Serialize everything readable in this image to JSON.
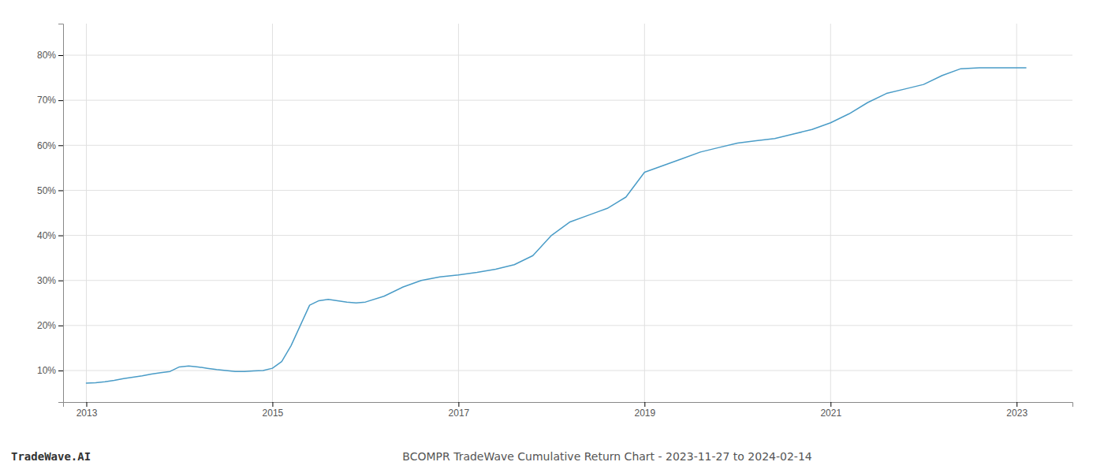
{
  "chart_data": {
    "type": "line",
    "title": "BCOMPR TradeWave Cumulative Return Chart - 2023-11-27 to 2024-02-14",
    "annotations": [
      {
        "text": "TradeWave.AI"
      }
    ],
    "color": "#4a9cc7",
    "grid": true,
    "x": [
      2013.0,
      2013.1,
      2013.2,
      2013.3,
      2013.4,
      2013.5,
      2013.6,
      2013.7,
      2013.8,
      2013.9,
      2014.0,
      2014.1,
      2014.2,
      2014.3,
      2014.4,
      2014.5,
      2014.6,
      2014.7,
      2014.8,
      2014.9,
      2015.0,
      2015.1,
      2015.2,
      2015.3,
      2015.4,
      2015.5,
      2015.6,
      2015.7,
      2015.8,
      2015.9,
      2016.0,
      2016.2,
      2016.4,
      2016.6,
      2016.8,
      2017.0,
      2017.2,
      2017.4,
      2017.6,
      2017.8,
      2018.0,
      2018.2,
      2018.4,
      2018.6,
      2018.8,
      2019.0,
      2019.2,
      2019.4,
      2019.6,
      2019.8,
      2020.0,
      2020.2,
      2020.4,
      2020.6,
      2020.8,
      2021.0,
      2021.2,
      2021.4,
      2021.6,
      2021.8,
      2022.0,
      2022.2,
      2022.4,
      2022.6,
      2022.8,
      2023.0,
      2023.1
    ],
    "values": [
      7.2,
      7.3,
      7.5,
      7.8,
      8.2,
      8.5,
      8.8,
      9.2,
      9.5,
      9.8,
      10.8,
      11.0,
      10.8,
      10.5,
      10.2,
      10.0,
      9.8,
      9.8,
      9.9,
      10.0,
      10.5,
      12.0,
      15.5,
      20.0,
      24.5,
      25.5,
      25.8,
      25.5,
      25.2,
      25.0,
      25.2,
      26.5,
      28.5,
      30.0,
      30.8,
      31.2,
      31.8,
      32.5,
      33.5,
      35.5,
      40.0,
      43.0,
      44.5,
      46.0,
      48.5,
      54.0,
      55.5,
      57.0,
      58.5,
      59.5,
      60.5,
      61.0,
      61.5,
      62.5,
      63.5,
      65.0,
      67.0,
      69.5,
      71.5,
      72.5,
      73.5,
      75.5,
      77.0,
      77.2,
      77.2,
      77.2,
      77.2
    ],
    "xlim": [
      2012.75,
      2023.6
    ],
    "xticks": [
      2013,
      2015,
      2017,
      2019,
      2021,
      2023
    ],
    "ylim": [
      3,
      87
    ],
    "yticks": [
      {
        "value": 10,
        "label": "10%"
      },
      {
        "value": 20,
        "label": "20%"
      },
      {
        "value": 30,
        "label": "30%"
      },
      {
        "value": 40,
        "label": "40%"
      },
      {
        "value": 50,
        "label": "50%"
      },
      {
        "value": 60,
        "label": "60%"
      },
      {
        "value": 70,
        "label": "70%"
      },
      {
        "value": 80,
        "label": "80%"
      }
    ]
  }
}
